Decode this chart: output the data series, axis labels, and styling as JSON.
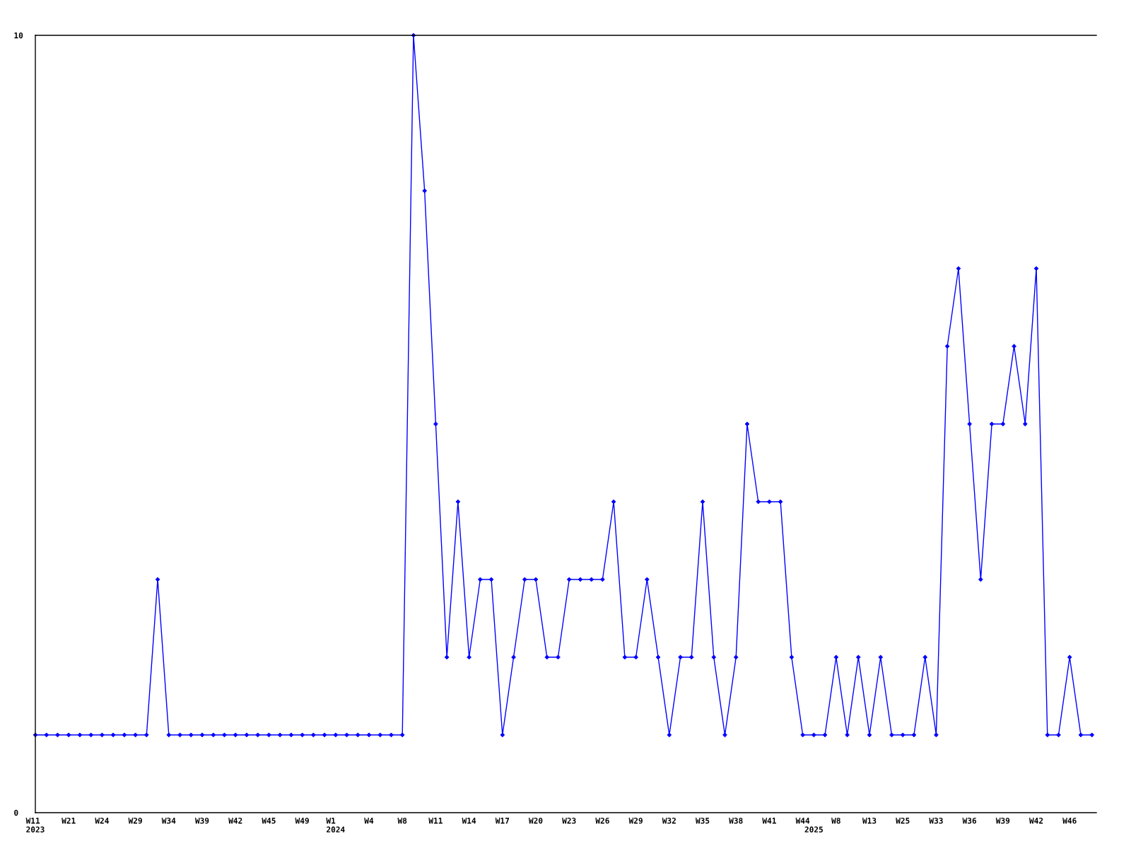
{
  "chart_data": {
    "type": "line",
    "categories": [
      "W11\n2023",
      null,
      null,
      "W21",
      null,
      null,
      "W24",
      null,
      null,
      "W29",
      null,
      null,
      "W34",
      null,
      null,
      "W39",
      null,
      null,
      "W42",
      null,
      null,
      "W45",
      null,
      null,
      "W49",
      null,
      null,
      "W1\n2024",
      null,
      null,
      "W4",
      null,
      null,
      "W8",
      null,
      null,
      "W11",
      null,
      null,
      "W14",
      null,
      null,
      "W17",
      null,
      null,
      "W20",
      null,
      null,
      "W23",
      null,
      null,
      "W26",
      null,
      null,
      "W29",
      null,
      null,
      "W32",
      null,
      null,
      "W35",
      null,
      null,
      "W38",
      null,
      null,
      "W41",
      null,
      null,
      "W44",
      "\n2025",
      null,
      "W8",
      null,
      null,
      "W13",
      null,
      null,
      "W25",
      null,
      null,
      "W33",
      null,
      null,
      "W36",
      null,
      null,
      "W39",
      null,
      null,
      "W42",
      null,
      null,
      "W46",
      null,
      null
    ],
    "series": [
      {
        "color": "#0000ff",
        "values": [
          1,
          1,
          1,
          1,
          1,
          1,
          1,
          1,
          1,
          1,
          1,
          3,
          1,
          1,
          1,
          1,
          1,
          1,
          1,
          1,
          1,
          1,
          1,
          1,
          1,
          1,
          1,
          1,
          1,
          1,
          1,
          1,
          1,
          1,
          10,
          8,
          5,
          2,
          4,
          2,
          3,
          3,
          1,
          2,
          3,
          3,
          2,
          2,
          3,
          3,
          3,
          3,
          4,
          2,
          2,
          3,
          2,
          1,
          2,
          2,
          4,
          2,
          1,
          2,
          5,
          4,
          4,
          4,
          2,
          1,
          1,
          1,
          2,
          1,
          2,
          1,
          2,
          1,
          1,
          1,
          2,
          1,
          6,
          7,
          5,
          3,
          5,
          5,
          6,
          5,
          7,
          1,
          1,
          2,
          1,
          1
        ]
      }
    ],
    "ylim": [
      0,
      10
    ],
    "yticks": [
      0,
      10
    ],
    "marker": "diamond",
    "line_style": "solid"
  }
}
